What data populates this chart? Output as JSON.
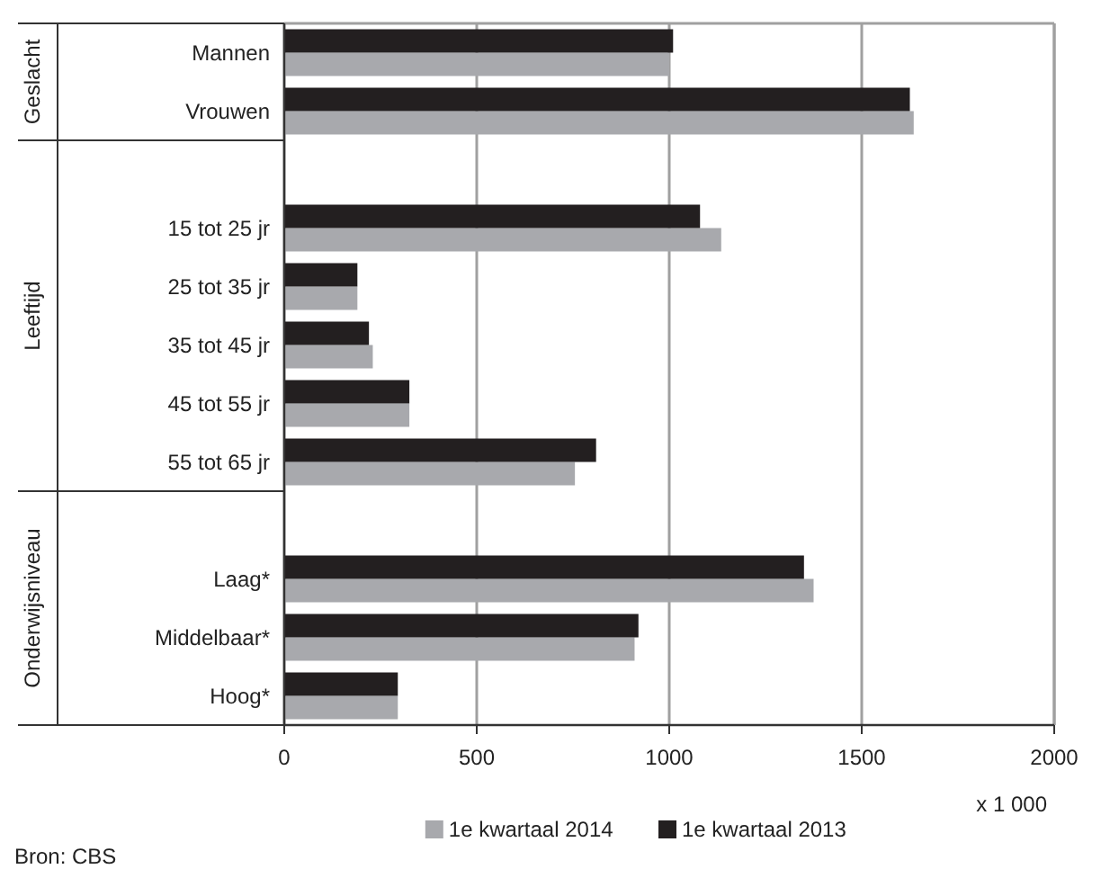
{
  "chart_data": {
    "type": "bar",
    "orientation": "horizontal",
    "categories": [
      "Mannen",
      "Vrouwen",
      null,
      "15 tot 25 jr",
      "25 tot 35 jr",
      "35 tot 45 jr",
      "45 tot 55 jr",
      "55 tot 65 jr",
      null,
      "Laag*",
      "Middelbaar*",
      "Hoog*"
    ],
    "series": [
      {
        "name": "1e kwartaal 2014",
        "color": "#a8a9ad",
        "values": [
          1000,
          1635,
          null,
          1135,
          190,
          230,
          325,
          755,
          null,
          1375,
          910,
          295
        ]
      },
      {
        "name": "1e kwartaal 2013",
        "color": "#231f20",
        "values": [
          1010,
          1625,
          null,
          1080,
          190,
          220,
          325,
          810,
          null,
          1350,
          920,
          295
        ]
      }
    ],
    "xlim": [
      0,
      2000
    ],
    "xticks": [
      0,
      500,
      1000,
      1500,
      2000
    ],
    "xlabel": "x 1 000",
    "grid": "x",
    "legend": "bottom",
    "annotations": [
      "Geslacht",
      "Leeftijd",
      "Onderwijsniveau",
      "Bron: CBS"
    ]
  }
}
